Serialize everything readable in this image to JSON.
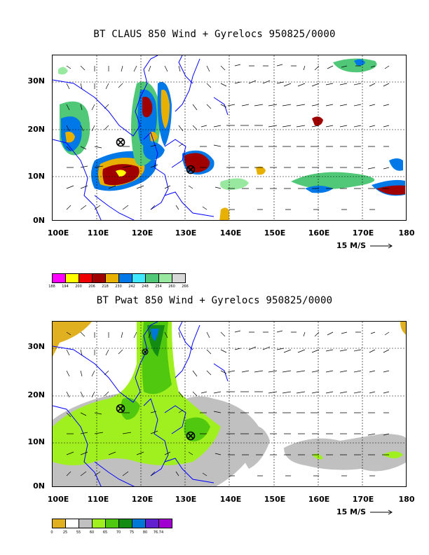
{
  "panels": [
    {
      "title": "BT CLAUS 850 Wind + Gyrelocs 950825/0000",
      "lat_labels": [
        "30N",
        "20N",
        "10N",
        "0N"
      ],
      "lon_labels": [
        "100E",
        "110E",
        "120E",
        "130E",
        "140E",
        "150E",
        "160E",
        "170E",
        "180"
      ],
      "scale_label": "15 M/S",
      "legend_colors": [
        "#ff00ff",
        "#ffff00",
        "#ee0000",
        "#a00000",
        "#e8b000",
        "#0078e8",
        "#40e8ff",
        "#50c878",
        "#98e8a0",
        "#d8d8d8"
      ],
      "legend_labels": [
        "188",
        "194",
        "200",
        "206",
        "218",
        "230",
        "242",
        "248",
        "254",
        "260",
        "266"
      ],
      "gyre_locations": [
        "115E 17N",
        "131E 12N"
      ]
    },
    {
      "title": "BT Pwat 850 Wind + Gyrelocs 950825/0000",
      "lat_labels": [
        "30N",
        "20N",
        "10N",
        "0N"
      ],
      "lon_labels": [
        "100E",
        "110E",
        "120E",
        "130E",
        "140E",
        "150E",
        "160E",
        "170E",
        "180"
      ],
      "scale_label": "15 M/S",
      "legend_colors": [
        "#e0b020",
        "#ffffff",
        "#c0c0c0",
        "#a0f020",
        "#50c810",
        "#148c14",
        "#0078d8",
        "#6020d0",
        "#a000d0"
      ],
      "legend_labels": [
        "0",
        "25",
        "55",
        "60",
        "65",
        "70",
        "75",
        "80",
        "76.74"
      ],
      "gyre_locations": [
        "115E 17N",
        "121E 29N",
        "131E 12N"
      ]
    }
  ]
}
